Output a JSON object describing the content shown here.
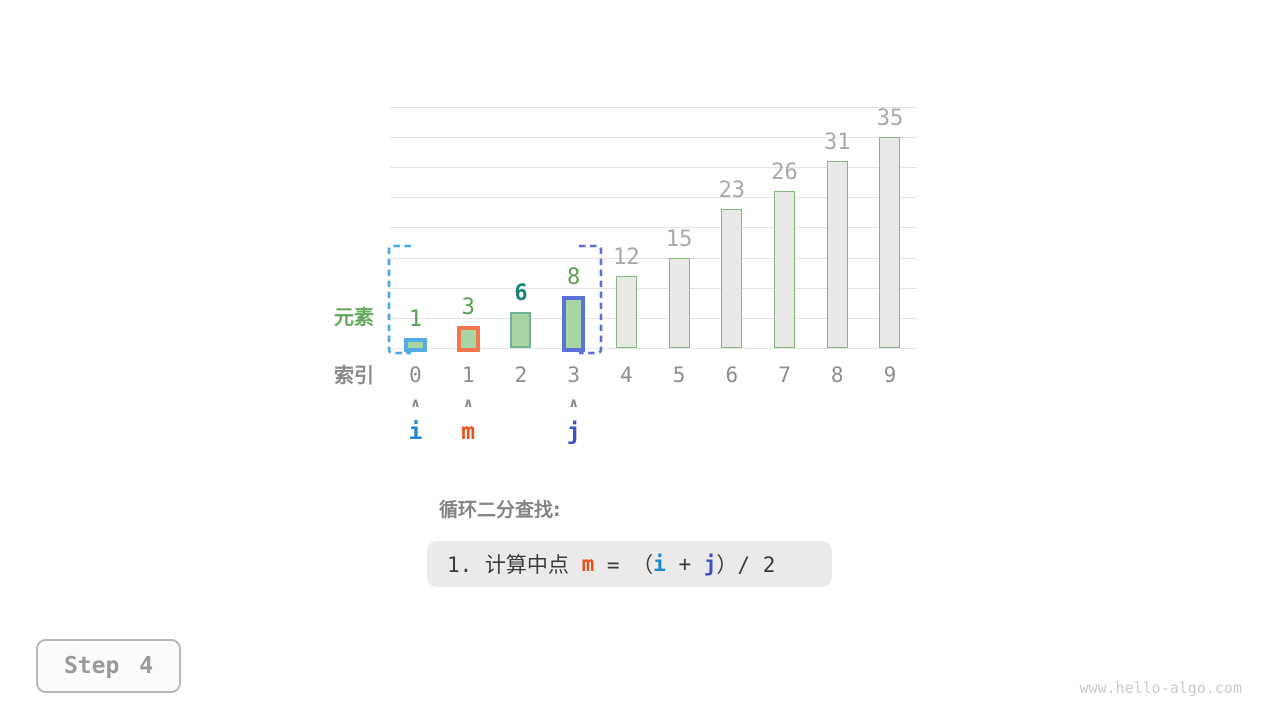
{
  "chart_data": {
    "type": "bar",
    "title": "",
    "categories": [
      "0",
      "1",
      "2",
      "3",
      "4",
      "5",
      "6",
      "7",
      "8",
      "9"
    ],
    "values": [
      1,
      3,
      6,
      8,
      12,
      15,
      23,
      26,
      31,
      35
    ],
    "xlabel": "",
    "ylabel": "",
    "ylim": [
      0,
      40
    ],
    "gridline_step": 5,
    "grid": true,
    "legend": "none",
    "row_labels": {
      "element": "元素",
      "index": "索引"
    },
    "bars": [
      {
        "index": "0",
        "value": 1,
        "fill": "#a9d4a4",
        "border": "#55abe6",
        "border_width": 4,
        "label_color": "#5a9e52",
        "label_bold": false
      },
      {
        "index": "1",
        "value": 3,
        "fill": "#a9d4a4",
        "border": "#f3764c",
        "border_width": 4,
        "label_color": "#5a9e52",
        "label_bold": false
      },
      {
        "index": "2",
        "value": 6,
        "fill": "#a9d4a4",
        "border": "#6fb392",
        "border_width": 2,
        "label_color": "#15837c",
        "label_bold": true
      },
      {
        "index": "3",
        "value": 8,
        "fill": "#a9d4a4",
        "border": "#5b72d9",
        "border_width": 4,
        "label_color": "#5a9e52",
        "label_bold": false
      },
      {
        "index": "4",
        "value": 12,
        "fill": "#e8e9e7",
        "border": "#83b97d",
        "border_width": 1.5,
        "label_color": "#a9a9a9",
        "label_bold": false
      },
      {
        "index": "5",
        "value": 15,
        "fill": "#e8e9e7",
        "border": "#83b97d",
        "border_width": 1.5,
        "label_color": "#a9a9a9",
        "label_bold": false
      },
      {
        "index": "6",
        "value": 23,
        "fill": "#e8e9e7",
        "border": "#83b97d",
        "border_width": 1.5,
        "label_color": "#a9a9a9",
        "label_bold": false
      },
      {
        "index": "7",
        "value": 26,
        "fill": "#e8e9e7",
        "border": "#83b97d",
        "border_width": 1.5,
        "label_color": "#a9a9a9",
        "label_bold": false
      },
      {
        "index": "8",
        "value": 31,
        "fill": "#e8e9e7",
        "border": "#83b97d",
        "border_width": 1.5,
        "label_color": "#a9a9a9",
        "label_bold": false
      },
      {
        "index": "9",
        "value": 35,
        "fill": "#e8e9e7",
        "border": "#83b97d",
        "border_width": 1.5,
        "label_color": "#a9a9a9",
        "label_bold": false
      }
    ],
    "pointers": [
      {
        "position": 0,
        "label": "i",
        "color": "#1e89d3"
      },
      {
        "position": 1,
        "label": "m",
        "color": "#e8521a"
      },
      {
        "position": 3,
        "label": "j",
        "color": "#3c51c6"
      }
    ],
    "highlight_range": {
      "from_index": 0,
      "to_index": 3,
      "left_color": "#47a7eb",
      "right_color": "#5a71d8",
      "style": "dashed-brackets"
    },
    "gridline_color": "#e4e4e4",
    "arrow_glyph": "∧"
  },
  "annotation": {
    "heading": "循环二分查找:",
    "formula_tokens": [
      {
        "t": "1. 计算中点 ",
        "c": "text",
        "bold": false
      },
      {
        "t": "m",
        "c": "m",
        "bold": true
      },
      {
        "t": " = （",
        "c": "text",
        "bold": false
      },
      {
        "t": "i",
        "c": "i",
        "bold": true
      },
      {
        "t": " + ",
        "c": "text",
        "bold": false
      },
      {
        "t": "j",
        "c": "j",
        "bold": true
      },
      {
        "t": "）/ 2",
        "c": "text",
        "bold": false
      }
    ],
    "token_colors": {
      "text": "#3b3b3b",
      "m": "#e8521a",
      "i": "#1e89d3",
      "j": "#3c51c6"
    }
  },
  "footer": {
    "step": "Step 4",
    "site": "www.hello-algo.com"
  }
}
